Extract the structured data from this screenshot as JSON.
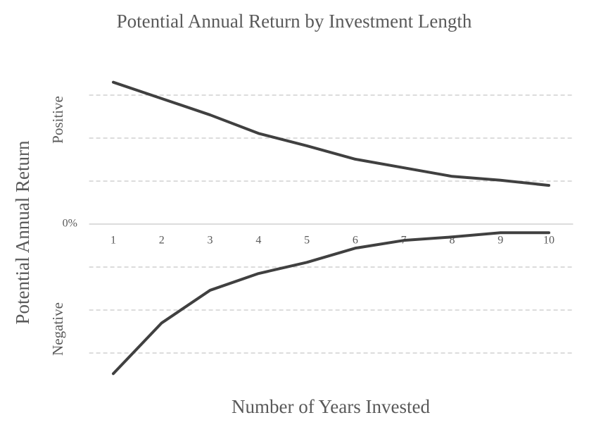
{
  "chart_data": {
    "type": "line",
    "title": "Potential Annual Return by Investment Length",
    "x_label": "Number of Years Invested",
    "y_label": "Potential Annual Return",
    "annotations": [
      "Positive",
      "Negative"
    ],
    "x": [
      1,
      2,
      3,
      4,
      5,
      6,
      7,
      8,
      9,
      10
    ],
    "xlim": [
      0.5,
      10.5
    ],
    "xticks": [
      1,
      2,
      3,
      4,
      5,
      6,
      7,
      8,
      9,
      10
    ],
    "ylim": [
      -3.5,
      3.5
    ],
    "yticks": [
      {
        "value": 0,
        "label": "0%"
      }
    ],
    "gridlines": [
      -3,
      -2,
      -1,
      1,
      2,
      3
    ],
    "grid": true,
    "series": [
      {
        "color": "#404040",
        "values": [
          3.3,
          2.92,
          2.54,
          2.11,
          1.82,
          1.51,
          1.31,
          1.11,
          1.02,
          0.9
        ]
      },
      {
        "color": "#404040",
        "values": [
          -3.48,
          -2.3,
          -1.54,
          -1.15,
          -0.89,
          -0.56,
          -0.38,
          -0.3,
          -0.2,
          -0.2
        ]
      }
    ]
  }
}
